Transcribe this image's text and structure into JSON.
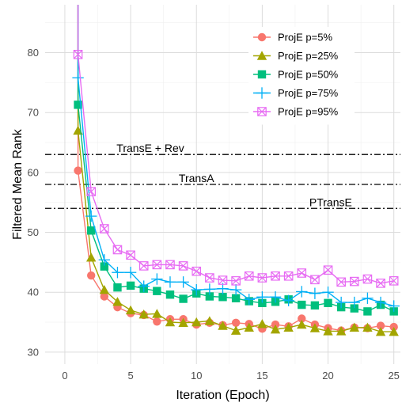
{
  "chart_data": {
    "type": "line",
    "xlabel": "Iteration (Epoch)",
    "ylabel": "Filtered Mean Rank",
    "xlim": [
      -1.5,
      25.5
    ],
    "ylim": [
      28,
      88
    ],
    "xticks": [
      "0",
      "5",
      "10",
      "15",
      "20",
      "25"
    ],
    "yticks": [
      "30",
      "40",
      "50",
      "60",
      "70",
      "80"
    ],
    "grid": true,
    "legend_position": "top-right",
    "x": [
      1,
      2,
      3,
      4,
      5,
      6,
      7,
      8,
      9,
      10,
      11,
      12,
      13,
      14,
      15,
      16,
      17,
      18,
      19,
      20,
      21,
      22,
      23,
      24,
      25
    ],
    "series": [
      {
        "name": "ProjE p=5%",
        "color": "#F8766D",
        "marker": "circle",
        "start": 90,
        "values": [
          60.3,
          42.8,
          39.3,
          37.5,
          36.5,
          36.2,
          35.1,
          35.5,
          35.5,
          34.6,
          34.9,
          34.5,
          34.9,
          34.7,
          33.9,
          34.6,
          34.3,
          35.6,
          34.6,
          34.0,
          33.6,
          34.1,
          34.0,
          34.4,
          34.2
        ]
      },
      {
        "name": "ProjE p=25%",
        "color": "#A3A500",
        "marker": "triangle",
        "start": 90,
        "values": [
          67.0,
          45.8,
          40.4,
          38.4,
          37.0,
          36.3,
          36.4,
          35.0,
          34.9,
          35.0,
          35.2,
          34.4,
          33.6,
          34.1,
          34.7,
          33.8,
          34.1,
          34.6,
          34.0,
          33.5,
          33.5,
          34.1,
          34.1,
          33.4,
          33.4
        ]
      },
      {
        "name": "ProjE p=50%",
        "color": "#00BF7D",
        "marker": "square",
        "start": 90,
        "values": [
          71.3,
          50.3,
          44.3,
          40.8,
          41.1,
          40.6,
          40.2,
          39.6,
          38.9,
          39.8,
          39.3,
          39.2,
          39.0,
          38.5,
          38.2,
          38.4,
          38.8,
          37.9,
          37.8,
          38.2,
          37.5,
          37.3,
          36.8,
          37.9,
          36.8
        ]
      },
      {
        "name": "ProjE p=75%",
        "color": "#00B0F6",
        "marker": "plus",
        "start": 90,
        "values": [
          75.8,
          52.7,
          45.4,
          43.3,
          43.3,
          41.0,
          42.2,
          41.7,
          41.7,
          40.4,
          40.5,
          40.6,
          40.4,
          38.8,
          39.2,
          39.2,
          38.6,
          40.1,
          39.8,
          40.0,
          38.3,
          38.3,
          39.0,
          38.3,
          37.7
        ]
      },
      {
        "name": "ProjE p=95%",
        "color": "#E76BF3",
        "marker": "boxx",
        "start": 90,
        "values": [
          79.7,
          56.8,
          50.6,
          47.1,
          46.2,
          44.4,
          44.6,
          44.6,
          44.4,
          43.5,
          42.4,
          42.0,
          41.9,
          42.7,
          42.4,
          42.7,
          42.7,
          43.2,
          42.1,
          43.7,
          41.7,
          41.8,
          42.2,
          41.5,
          41.9
        ]
      }
    ],
    "reference_lines": [
      {
        "label": "TransE + Rev",
        "value": 63,
        "label_x": 6.5
      },
      {
        "label": "TransA",
        "value": 58,
        "label_x": 10.0
      },
      {
        "label": "PTransE",
        "value": 54,
        "label_x": 20.2
      }
    ]
  }
}
